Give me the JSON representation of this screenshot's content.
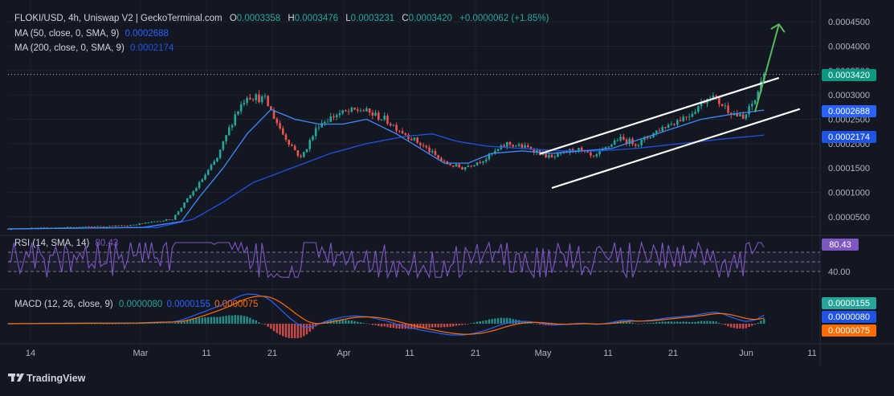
{
  "header": {
    "symbol": "FLOKI/USD, 4h, Uniswap V2 | GeckoTerminal.com",
    "ohlc": [
      {
        "k": "O",
        "v": "0.0003358"
      },
      {
        "k": "H",
        "v": "0.0003476"
      },
      {
        "k": "L",
        "v": "0.0003231"
      },
      {
        "k": "C",
        "v": "0.0003420"
      }
    ],
    "change": "+0.0000062 (+1.85%)",
    "ma50_label": "MA (50, close, 0, SMA, 9)",
    "ma50_value": "0.0002688",
    "ma200_label": "MA (200, close, 0, SMA, 9)",
    "ma200_value": "0.0002174"
  },
  "rsi": {
    "label": "RSI (14, SMA, 14)",
    "value": "80.43",
    "badge": "80.43",
    "level_label": "40.00"
  },
  "macd": {
    "label": "MACD (12, 26, close, 9)",
    "v1": "0.0000080",
    "v2": "0.0000155",
    "v3": "0.0000075",
    "badges": [
      "0.0000155",
      "0.0000080",
      "0.0000075"
    ]
  },
  "price_badges": {
    "last": "0.0003420",
    "ma50": "0.0002688",
    "ma200": "0.0002174"
  },
  "brand": "TradingView",
  "colors": {
    "bg": "#131722",
    "up": "#26a69a",
    "down": "#ef5350",
    "ma50": "#2962ff",
    "ma200": "#1e53e5",
    "rsi": "#7e57c2",
    "macd_line": "#2962ff",
    "signal_line": "#ff6d00",
    "arrow": "#4caf50",
    "channel": "#ffffff",
    "last": "#089981"
  },
  "chart_data": {
    "type": "candlestick",
    "ylim": [
      2e-05,
      0.00047
    ],
    "ytick_labels": [
      "0.0004500",
      "0.0004000",
      "0.0003500",
      "0.0003000",
      "0.0002500",
      "0.0002000",
      "0.0001500",
      "0.0001000",
      "0.0000500"
    ],
    "xtick_labels": [
      "14",
      "Mar",
      "11",
      "21",
      "Apr",
      "11",
      "21",
      "May",
      "11",
      "21",
      "Jun",
      "11"
    ],
    "last_price": 0.000342,
    "ma50_last": 0.0002688,
    "ma200_last": 0.0002174,
    "price_path": [
      [
        0,
        2.5e-05
      ],
      [
        20,
        2.8e-05
      ],
      [
        40,
        3.2e-05
      ],
      [
        55,
        4.5e-05
      ],
      [
        63,
        0.00011
      ],
      [
        70,
        0.00017
      ],
      [
        76,
        0.00026
      ],
      [
        80,
        0.0003
      ],
      [
        86,
        0.00029
      ],
      [
        92,
        0.00022
      ],
      [
        98,
        0.00017
      ],
      [
        104,
        0.00024
      ],
      [
        110,
        0.00026
      ],
      [
        118,
        0.00027
      ],
      [
        126,
        0.00025
      ],
      [
        133,
        0.00022
      ],
      [
        140,
        0.00019
      ],
      [
        146,
        0.00016
      ],
      [
        152,
        0.00015
      ],
      [
        160,
        0.00017
      ],
      [
        167,
        0.0002
      ],
      [
        175,
        0.00019
      ],
      [
        182,
        0.00017
      ],
      [
        190,
        0.00019
      ],
      [
        196,
        0.00017
      ],
      [
        204,
        0.00021
      ],
      [
        211,
        0.0002
      ],
      [
        218,
        0.00023
      ],
      [
        228,
        0.00026
      ],
      [
        235,
        0.0003
      ],
      [
        241,
        0.00027
      ],
      [
        246,
        0.00025
      ],
      [
        250,
        0.00029
      ],
      [
        253,
        0.000342
      ]
    ],
    "ma50_path": [
      [
        0,
        2.5e-05
      ],
      [
        45,
        2.8e-05
      ],
      [
        58,
        4e-05
      ],
      [
        64,
        9e-05
      ],
      [
        72,
        0.00015
      ],
      [
        80,
        0.00022
      ],
      [
        88,
        0.00027
      ],
      [
        96,
        0.00025
      ],
      [
        104,
        0.00024
      ],
      [
        112,
        0.00024
      ],
      [
        120,
        0.00025
      ],
      [
        130,
        0.00022
      ],
      [
        138,
        0.00019
      ],
      [
        146,
        0.00016
      ],
      [
        154,
        0.00016
      ],
      [
        162,
        0.00018
      ],
      [
        172,
        0.000185
      ],
      [
        182,
        0.00018
      ],
      [
        192,
        0.000185
      ],
      [
        202,
        0.00019
      ],
      [
        212,
        0.00021
      ],
      [
        222,
        0.00023
      ],
      [
        232,
        0.00025
      ],
      [
        242,
        0.00026
      ],
      [
        253,
        0.0002688
      ]
    ],
    "ma200_path": [
      [
        0,
        2.5e-05
      ],
      [
        50,
        2.8e-05
      ],
      [
        62,
        4.5e-05
      ],
      [
        72,
        8e-05
      ],
      [
        82,
        0.00012
      ],
      [
        95,
        0.00015
      ],
      [
        108,
        0.00018
      ],
      [
        120,
        0.0002
      ],
      [
        133,
        0.000215
      ],
      [
        142,
        0.00022
      ],
      [
        150,
        0.000205
      ],
      [
        160,
        0.000195
      ],
      [
        172,
        0.00019
      ],
      [
        185,
        0.000185
      ],
      [
        198,
        0.000185
      ],
      [
        210,
        0.00019
      ],
      [
        225,
        0.0002
      ],
      [
        240,
        0.00021
      ],
      [
        253,
        0.0002174
      ]
    ],
    "channel_upper": [
      [
        178,
        0.000179
      ],
      [
        258,
        0.000335
      ]
    ],
    "channel_lower": [
      [
        182,
        0.000109
      ],
      [
        265,
        0.000271
      ]
    ],
    "arrow": [
      [
        250,
        0.000265
      ],
      [
        258,
        0.000445
      ]
    ],
    "rsi_range": [
      0,
      100
    ],
    "rsi_levels": [
      70,
      50,
      30
    ],
    "rsi_last": 80.43
  }
}
